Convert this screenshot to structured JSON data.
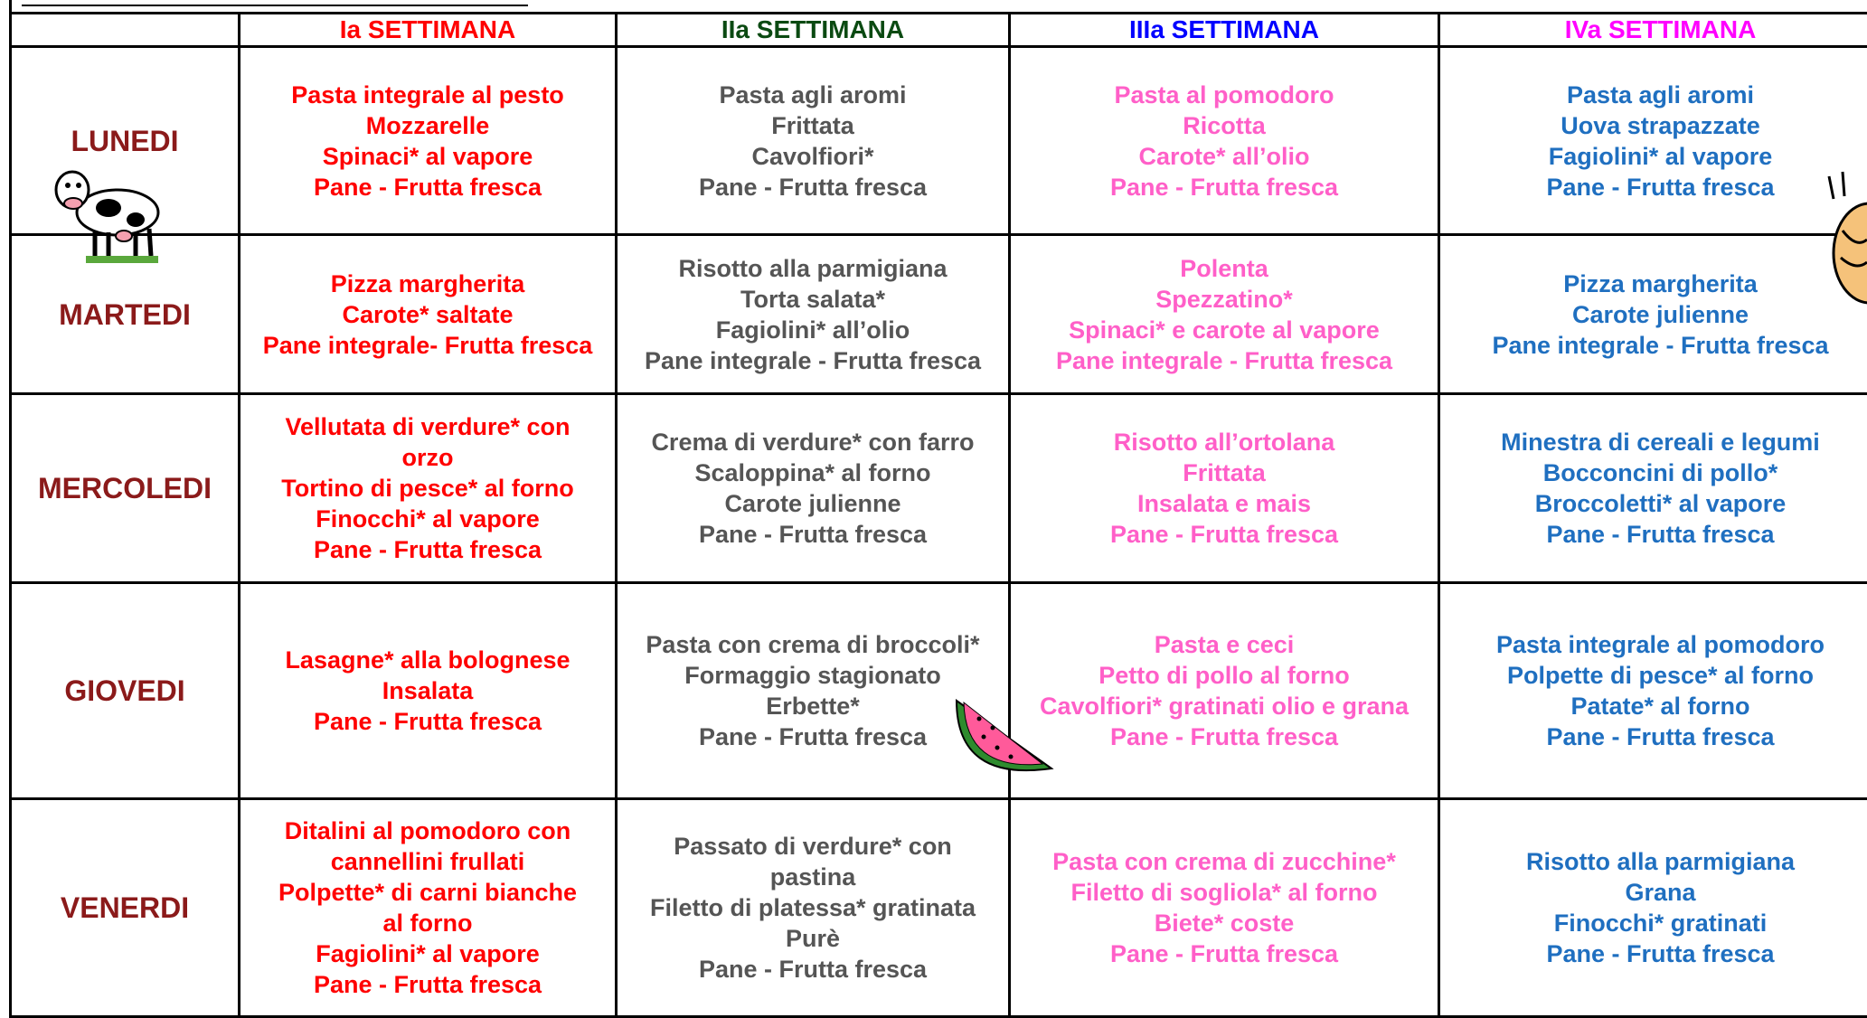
{
  "header": {
    "columns": [
      "Ia SETTIMANA",
      "IIa  SETTIMANA",
      "IIIa  SETTIMANA",
      "IVa  SETTIMANA"
    ]
  },
  "rows": [
    {
      "day": "LUNEDI",
      "cells": [
        [
          "Pasta integrale al pesto",
          "Mozzarelle",
          "Spinaci* al vapore",
          "Pane - Frutta fresca"
        ],
        [
          "Pasta agli aromi",
          "Frittata",
          "Cavolfiori*",
          "Pane - Frutta fresca"
        ],
        [
          "Pasta al pomodoro",
          "Ricotta",
          "Carote* all’olio",
          "Pane - Frutta fresca"
        ],
        [
          "Pasta agli aromi",
          "Uova strapazzate",
          "Fagiolini* al vapore",
          "Pane - Frutta fresca"
        ]
      ]
    },
    {
      "day": "MARTEDI",
      "cells": [
        [
          "Pizza margherita",
          "Carote* saltate",
          "Pane integrale- Frutta fresca"
        ],
        [
          "Risotto alla parmigiana",
          "Torta salata*",
          "Fagiolini* all’olio",
          "Pane integrale - Frutta fresca"
        ],
        [
          "Polenta",
          "Spezzatino*",
          "Spinaci* e carote al vapore",
          "Pane integrale - Frutta fresca"
        ],
        [
          "Pizza margherita",
          "Carote julienne",
          "Pane integrale - Frutta fresca"
        ]
      ]
    },
    {
      "day": "MERCOLEDI",
      "cells": [
        [
          "Vellutata di verdure* con",
          "orzo",
          "Tortino di pesce* al forno",
          "Finocchi* al vapore",
          "Pane - Frutta fresca"
        ],
        [
          "Crema di verdure* con farro",
          "Scaloppina* al forno",
          "Carote julienne",
          "Pane  - Frutta fresca"
        ],
        [
          "Risotto all’ortolana",
          "Frittata",
          "Insalata e mais",
          "Pane - Frutta fresca"
        ],
        [
          "Minestra di cereali e legumi",
          "Bocconcini di pollo*",
          "Broccoletti* al vapore",
          "Pane - Frutta fresca"
        ]
      ]
    },
    {
      "day": "GIOVEDI",
      "cells": [
        [
          "Lasagne* alla bolognese",
          "Insalata",
          "Pane - Frutta fresca"
        ],
        [
          "Pasta con crema di broccoli*",
          "Formaggio stagionato",
          "Erbette*",
          "Pane - Frutta fresca"
        ],
        [
          "Pasta e ceci",
          "Petto di pollo al forno",
          "Cavolfiori* gratinati olio e grana",
          "Pane - Frutta fresca"
        ],
        [
          "Pasta integrale al pomodoro",
          "Polpette di pesce* al forno",
          "Patate* al forno",
          "Pane - Frutta fresca"
        ]
      ]
    },
    {
      "day": "VENERDI",
      "cells": [
        [
          "Ditalini al pomodoro con",
          "cannellini frullati",
          "Polpette* di carni bianche",
          "al forno",
          "Fagiolini* al vapore",
          "Pane - Frutta fresca"
        ],
        [
          "Passato di verdure* con",
          "pastina",
          "Filetto di platessa* gratinata",
          "Purè",
          "Pane - Frutta fresca"
        ],
        [
          "Pasta con crema di zucchine*",
          "Filetto di sogliola* al forno",
          "Biete* coste",
          "Pane - Frutta fresca"
        ],
        [
          "Risotto alla parmigiana",
          "Grana",
          "Finocchi* gratinati",
          "Pane - Frutta fresca"
        ]
      ]
    }
  ]
}
